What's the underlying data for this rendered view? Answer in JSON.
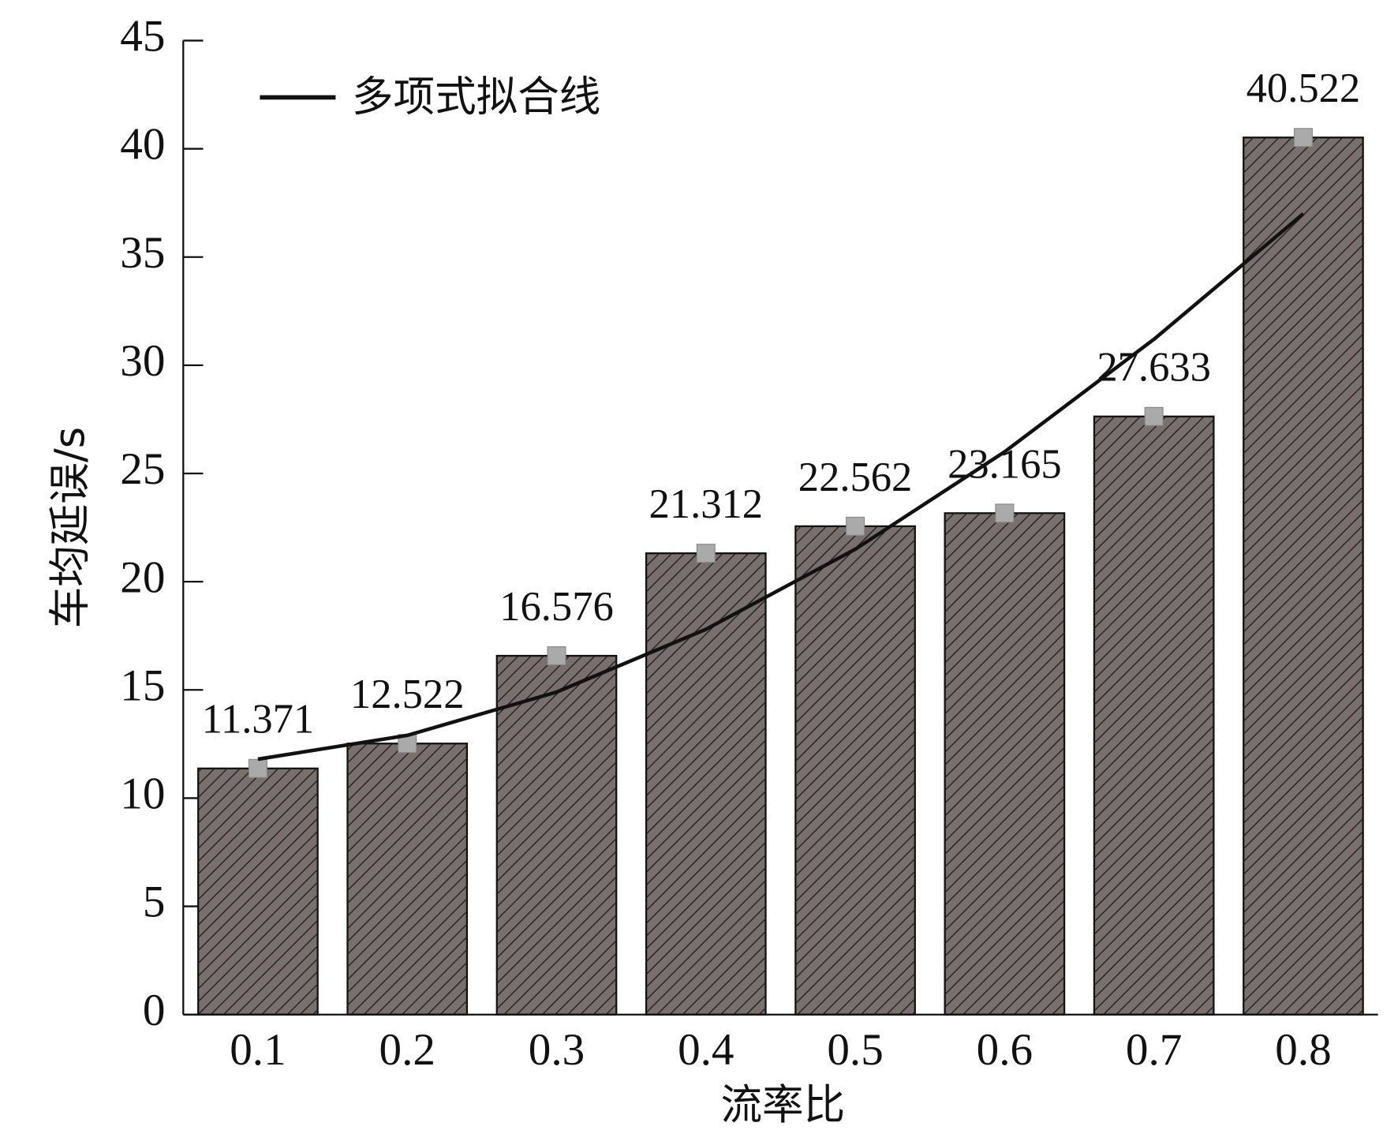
{
  "chart_data": {
    "type": "bar",
    "categories": [
      "0.1",
      "0.2",
      "0.3",
      "0.4",
      "0.5",
      "0.6",
      "0.7",
      "0.8"
    ],
    "values": [
      11.371,
      12.522,
      16.576,
      21.312,
      22.562,
      23.165,
      27.633,
      40.522
    ],
    "color": "#7a6f6f",
    "x_label": "流率比",
    "y_label": "车均延误/s",
    "ylim": [
      0,
      45
    ],
    "yticks": [
      0,
      5,
      10,
      15,
      20,
      25,
      30,
      35,
      40,
      45
    ],
    "fit_line": {
      "name": "多项式拟合线",
      "color": "#111111",
      "values": [
        11.8,
        12.9,
        14.9,
        17.8,
        21.5,
        26.0,
        31.2,
        37.0
      ]
    }
  }
}
